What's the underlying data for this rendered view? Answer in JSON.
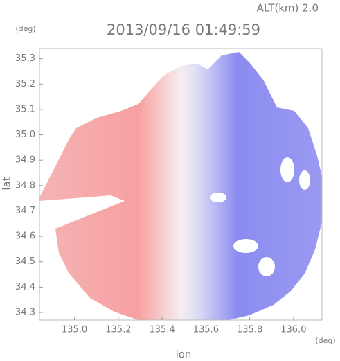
{
  "chart_data": {
    "type": "radar-ppi",
    "altitude_label": "ALT(km) 2.0",
    "title": "2013/09/16 01:49:59",
    "x_label": "lon",
    "y_label": "lat",
    "x_unit": "(deg)",
    "y_unit": "(deg)",
    "xlim": [
      134.84,
      136.13
    ],
    "xticks": [
      {
        "value": 135,
        "label": "135.0"
      },
      135.2,
      135.4,
      135.6,
      135.8,
      {
        "value": 136,
        "label": "136.0"
      }
    ],
    "ylim": [
      34.27,
      35.34
    ],
    "yticks": [
      34.3,
      34.4,
      34.5,
      34.6,
      34.7,
      34.8,
      34.9,
      {
        "value": 35,
        "label": "35.0"
      },
      35.1,
      35.2,
      35.3
    ]
  }
}
